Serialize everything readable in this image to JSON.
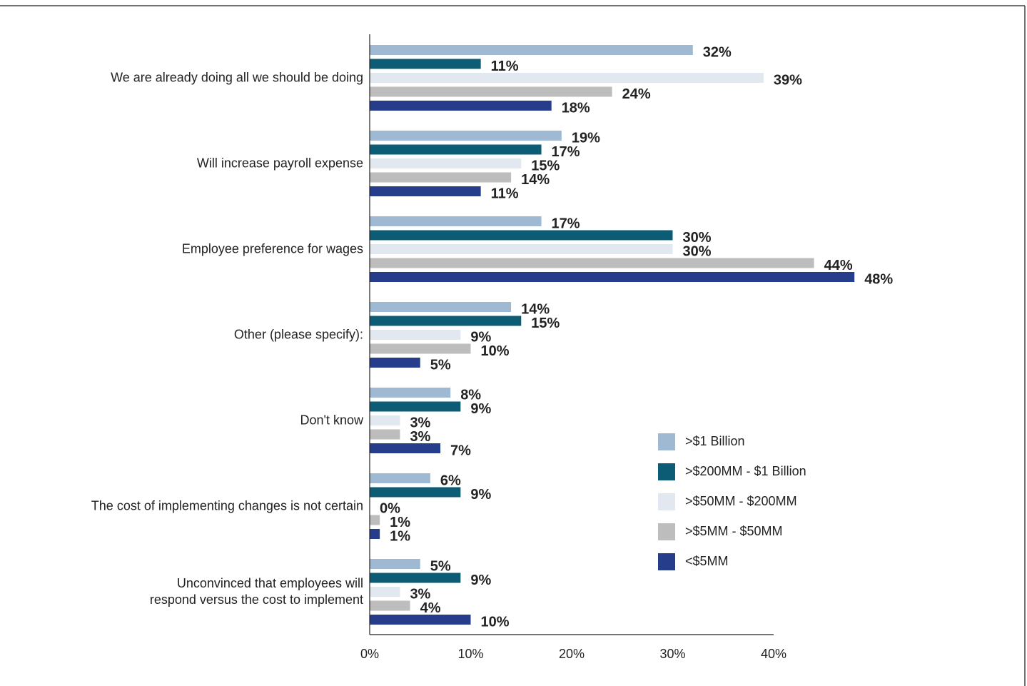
{
  "chart_data": {
    "type": "bar",
    "orientation": "horizontal",
    "categories": [
      "We are already doing all we should be doing",
      "Will increase payroll expense",
      "Employee preference for wages",
      "Other (please specify):",
      "Don't know",
      "The cost of implementing changes is not certain",
      "Unconvinced that employees will\nrespond versus the cost to implement"
    ],
    "series": [
      {
        "name": ">$1 Billion",
        "color": "#a0b9d2",
        "values": [
          32,
          19,
          17,
          14,
          8,
          6,
          5
        ],
        "value_labels": [
          "32%",
          "19%",
          "17%",
          "14%",
          "8%",
          "6%",
          "5%"
        ]
      },
      {
        "name": ">$200MM - $1 Billion",
        "color": "#0d5c76",
        "values": [
          11,
          17,
          30,
          15,
          9,
          9,
          9
        ],
        "value_labels": [
          "11%",
          "17%",
          "30%",
          "15%",
          "9%",
          "9%",
          "9%"
        ]
      },
      {
        "name": ">$50MM - $200MM",
        "color": "#e1e8f0",
        "values": [
          39,
          15,
          30,
          9,
          3,
          0,
          3
        ],
        "value_labels": [
          "39%",
          "15%",
          "30%",
          "9%",
          "3%",
          "0%",
          "3%"
        ]
      },
      {
        "name": ">$5MM - $50MM",
        "color": "#bdbdbd",
        "values": [
          24,
          14,
          44,
          10,
          3,
          1,
          4
        ],
        "value_labels": [
          "24%",
          "14%",
          "44%",
          "10%",
          "3%",
          "1%",
          "4%"
        ]
      },
      {
        "name": "<$5MM",
        "color": "#263d8c",
        "values": [
          18,
          11,
          48,
          5,
          7,
          1,
          10
        ],
        "value_labels": [
          "18%",
          "11%",
          "48%",
          "5%",
          "7%",
          "1%",
          "10%"
        ]
      }
    ],
    "xlim": [
      0,
      40
    ],
    "xticks": [
      {
        "value": 0,
        "label": "0%"
      },
      {
        "value": 10,
        "label": "10%"
      },
      {
        "value": 20,
        "label": "20%"
      },
      {
        "value": 30,
        "label": "30%"
      },
      {
        "value": 40,
        "label": "40%"
      }
    ],
    "legend": "center-right"
  }
}
